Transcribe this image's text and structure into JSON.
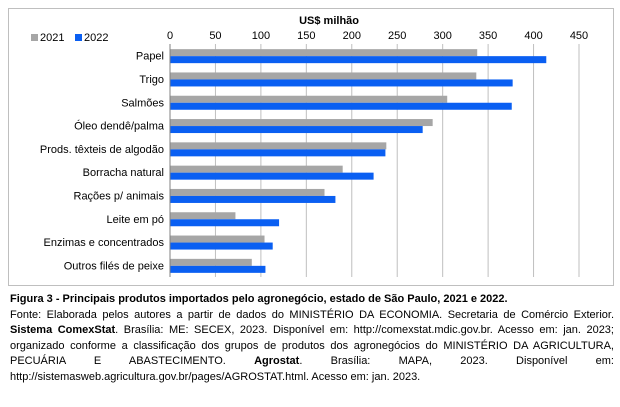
{
  "chart_data": {
    "type": "bar",
    "orientation": "horizontal",
    "title": "",
    "xlabel": "US$ milhão",
    "ylabel": "",
    "xlim": [
      0,
      450
    ],
    "xticks": [
      0,
      50,
      100,
      150,
      200,
      250,
      300,
      350,
      400,
      450
    ],
    "grid": true,
    "legend_position": "top-left",
    "categories": [
      "Papel",
      "Trigo",
      "Salmões",
      "Óleo dendê/palma",
      "Prods. têxteis de algodão",
      "Borracha natural",
      "Rações p/ animais",
      "Leite em pó",
      "Enzimas e concentrados",
      "Outros filés de peixe"
    ],
    "series": [
      {
        "name": "2021",
        "color": "#a6a6a6",
        "values": [
          338,
          337,
          305,
          289,
          238,
          190,
          170,
          72,
          104,
          90
        ]
      },
      {
        "name": "2022",
        "color": "#0a5ff2",
        "values": [
          414,
          377,
          376,
          278,
          237,
          224,
          182,
          120,
          113,
          105
        ]
      }
    ]
  },
  "caption": {
    "figure_label": "Figura 3 - Principais produtos importados pelo agronegócio, estado de São Paulo, 2021 e 2022",
    "figure_end": ".",
    "source_a": "Fonte: Elaborada pelos autores a partir de dados do MINISTÉRIO DA ECONOMIA. Secretaria de Comércio Exterior. ",
    "source_b": "Sistema ComexStat",
    "source_c": ". Brasília: ME: SECEX, 2023. Disponível em: http://comexstat.mdic.gov.br. Acesso em: jan. 2023; organizado conforme a classificação dos grupos de produtos dos agronegócios do MINISTÉRIO DA AGRICULTURA, PECUÁRIA E ABASTECIMENTO. ",
    "source_d": "Agrostat",
    "source_e": ". Brasília: MAPA, 2023. Disponível em: http://sistemasweb.agricultura.gov.br/pages/AGROSTAT.html. Acesso em: jan. 2023."
  }
}
